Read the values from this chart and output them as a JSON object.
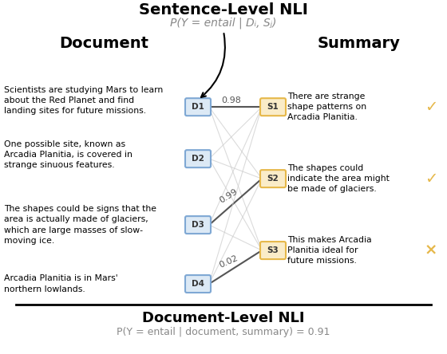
{
  "title_top": "Sentence-Level NLI",
  "subtitle_top": "P(Y = entail | Dᵢ, Sⱼ)",
  "title_bottom": "Document-Level NLI",
  "subtitle_bottom": "P(Y = entail | document, summary) = 0.91",
  "doc_header": "Document",
  "sum_header": "Summary",
  "doc_sentences": [
    "Scientists are studying Mars to learn\nabout the Red Planet and find\nlanding sites for future missions.",
    "One possible site, known as\nArcadia Planitia, is covered in\nstrange sinuous features.",
    "The shapes could be signs that the\narea is actually made of glaciers,\nwhich are large masses of slow-\nmoving ice.",
    "Arcadia Planitia is in Mars'\nnorthern lowlands."
  ],
  "sum_sentences": [
    "There are strange\nshape patterns on\nArcadia Planitia.",
    "The shapes could\nindicate the area might\nbe made of glaciers.",
    "This makes Arcadia\nPlanitia ideal for\nfuture missions."
  ],
  "doc_labels": [
    "D1",
    "D2",
    "D3",
    "D4"
  ],
  "sum_labels": [
    "S1",
    "S2",
    "S3"
  ],
  "doc_box_color": "#7fa8d4",
  "sum_box_color": "#e6b84a",
  "doc_box_facecolor": "#dce9f5",
  "sum_box_facecolor": "#faecc8",
  "check_color": "#e6b84a",
  "cross_color": "#e6a020",
  "line_color_dark": "#555555",
  "line_color_light": "#cccccc",
  "connections": [
    {
      "d": 0,
      "s": 0,
      "score": "0.98",
      "highlight": true
    },
    {
      "d": 0,
      "s": 1,
      "score": null,
      "highlight": false
    },
    {
      "d": 0,
      "s": 2,
      "score": null,
      "highlight": false
    },
    {
      "d": 1,
      "s": 0,
      "score": null,
      "highlight": false
    },
    {
      "d": 1,
      "s": 1,
      "score": null,
      "highlight": false
    },
    {
      "d": 1,
      "s": 2,
      "score": null,
      "highlight": false
    },
    {
      "d": 2,
      "s": 0,
      "score": null,
      "highlight": false
    },
    {
      "d": 2,
      "s": 1,
      "score": "0.99",
      "highlight": true
    },
    {
      "d": 2,
      "s": 2,
      "score": null,
      "highlight": false
    },
    {
      "d": 3,
      "s": 0,
      "score": null,
      "highlight": false
    },
    {
      "d": 3,
      "s": 1,
      "score": null,
      "highlight": false
    },
    {
      "d": 3,
      "s": 2,
      "score": "0.02",
      "highlight": true
    }
  ],
  "sum_marks": [
    "✓",
    "✓",
    "×"
  ],
  "sum_marks_colors": [
    "#e6b84a",
    "#e6b84a",
    "#e6b84a"
  ]
}
